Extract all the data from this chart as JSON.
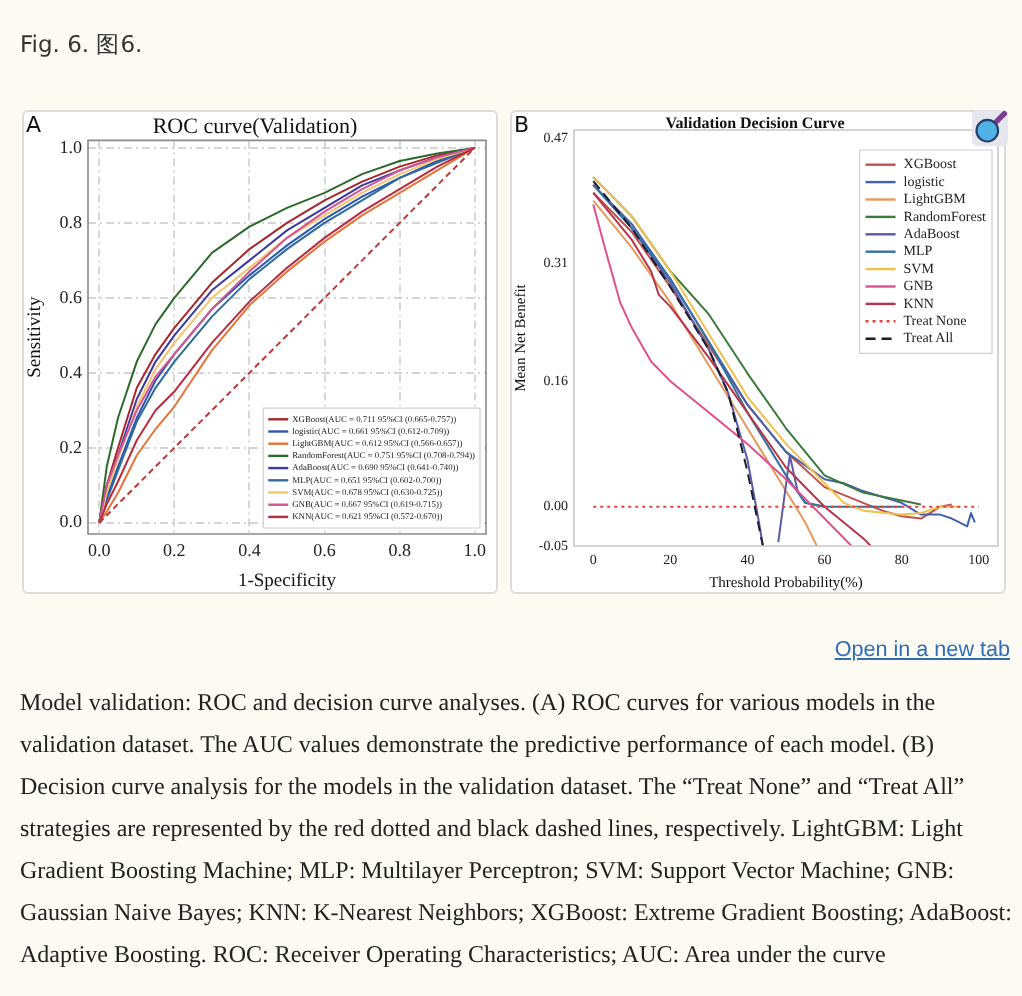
{
  "chart_data": [
    {
      "type": "line",
      "title": "ROC curve(Validation)",
      "xlabel": "1-Specificity",
      "ylabel": "Sensitivity",
      "annotations": [
        "Fig. 6. 图6.",
        "A"
      ],
      "x": [
        0,
        0.02,
        0.05,
        0.1,
        0.15,
        0.2,
        0.3,
        0.4,
        0.5,
        0.6,
        0.7,
        0.8,
        0.9,
        1.0
      ],
      "series": [
        {
          "name": "XGBoost(AUC = 0.711 95%CI (0.665-0.757))",
          "color": "#a8262b",
          "values": [
            0,
            0.1,
            0.2,
            0.36,
            0.45,
            0.52,
            0.64,
            0.73,
            0.8,
            0.86,
            0.91,
            0.95,
            0.98,
            1
          ]
        },
        {
          "name": "logistic(AUC = 0.661 95%CI (0.612-0.709))",
          "color": "#2e55b8",
          "values": [
            0,
            0.07,
            0.15,
            0.28,
            0.38,
            0.45,
            0.57,
            0.66,
            0.74,
            0.81,
            0.87,
            0.92,
            0.965,
            1
          ]
        },
        {
          "name": "LightGBM(AUC = 0.612 95%CI (0.566-0.657))",
          "color": "#e6733a",
          "values": [
            0,
            0.03,
            0.08,
            0.18,
            0.25,
            0.31,
            0.46,
            0.58,
            0.67,
            0.75,
            0.82,
            0.88,
            0.94,
            1
          ]
        },
        {
          "name": "RandomForest(AUC = 0.751 95%CI (0.708-0.794))",
          "color": "#2b6a2b",
          "values": [
            0,
            0.15,
            0.28,
            0.43,
            0.53,
            0.6,
            0.72,
            0.79,
            0.84,
            0.88,
            0.93,
            0.965,
            0.985,
            1
          ]
        },
        {
          "name": "AdaBoost(AUC = 0.690 95%CI (0.641-0.740))",
          "color": "#3a3aa0",
          "values": [
            0,
            0.1,
            0.18,
            0.33,
            0.43,
            0.5,
            0.62,
            0.7,
            0.78,
            0.84,
            0.9,
            0.94,
            0.975,
            1
          ]
        },
        {
          "name": "MLP(AUC = 0.651 95%CI (0.602-0.700))",
          "color": "#2d6c9a",
          "values": [
            0,
            0.06,
            0.14,
            0.27,
            0.36,
            0.43,
            0.55,
            0.65,
            0.73,
            0.8,
            0.86,
            0.92,
            0.96,
            1
          ]
        },
        {
          "name": "SVM(AUC = 0.678 95%CI (0.630-0.725))",
          "color": "#f4c56c",
          "values": [
            0,
            0.08,
            0.17,
            0.31,
            0.41,
            0.48,
            0.6,
            0.68,
            0.76,
            0.82,
            0.88,
            0.93,
            0.97,
            1
          ]
        },
        {
          "name": "GNB(AUC = 0.667 95%CI (0.619-0.715))",
          "color": "#d65591",
          "values": [
            0,
            0.1,
            0.18,
            0.3,
            0.39,
            0.45,
            0.57,
            0.67,
            0.76,
            0.83,
            0.89,
            0.94,
            0.975,
            1
          ]
        },
        {
          "name": "KNN(AUC = 0.621 95%CI (0.572-0.670))",
          "color": "#b52d3f",
          "values": [
            0,
            0.05,
            0.11,
            0.22,
            0.3,
            0.35,
            0.48,
            0.59,
            0.68,
            0.76,
            0.83,
            0.89,
            0.95,
            1
          ]
        },
        {
          "color": "#b83a3a",
          "x": [
            0,
            1
          ],
          "values": [
            0,
            1
          ],
          "line_style": "dashed"
        }
      ],
      "xlim": [
        -0.03,
        1.03
      ],
      "ylim": [
        -0.03,
        1.02
      ],
      "xticks": [
        {
          "value": 0,
          "label": "0.0"
        },
        {
          "value": 0.2,
          "label": "0.2"
        },
        {
          "value": 0.4,
          "label": "0.4"
        },
        {
          "value": 0.6,
          "label": "0.6"
        },
        {
          "value": 0.8,
          "label": "0.8"
        },
        {
          "value": 1,
          "label": "1.0"
        }
      ],
      "yticks": [
        {
          "value": 0,
          "label": "0.0"
        },
        {
          "value": 0.2,
          "label": "0.2"
        },
        {
          "value": 0.4,
          "label": "0.4"
        },
        {
          "value": 0.6,
          "label": "0.6"
        },
        {
          "value": 0.8,
          "label": "0.8"
        },
        {
          "value": 1,
          "label": "1.0"
        }
      ],
      "grid": true,
      "legend": "bottom right"
    },
    {
      "type": "line",
      "title": "Validation Decision Curve",
      "xlabel": "Threshold Probability(%)",
      "ylabel": "Mean Net Benefit",
      "annotations": [
        "B",
        "Open in a new tab",
        "Model validation: ROC and decision curve analyses. (A) ROC curves for various models in the validation dataset. The AUC values demonstrate the predictive performance of each model. (B) Decision curve analysis for the models in the validation dataset. The “Treat None” and “Treat All” strategies are represented by the red dotted and black dashed lines, respectively. LightGBM: Light Gradient Boosting Machine; MLP: Multilayer Perceptron; SVM: Support Vector Machine; GNB: Gaussian Naive Bayes; KNN: K-Nearest Neighbors; XGBoost: Extreme Gradient Boosting; AdaBoost: Adaptive Boosting. ROC: Receiver Operating Characteristics; AUC: Area under the curve"
      ],
      "series": [
        {
          "name": "XGBoost",
          "color": "#c0504d",
          "x": [
            0,
            10,
            20,
            30,
            40,
            50,
            60,
            70,
            75,
            80,
            85,
            90,
            93
          ],
          "values": [
            0.4,
            0.35,
            0.28,
            0.205,
            0.13,
            0.07,
            0.025,
            0.005,
            -0.005,
            -0.012,
            -0.015,
            0.0,
            0.003
          ]
        },
        {
          "name": "logistic",
          "color": "#4262b0",
          "x": [
            0,
            10,
            20,
            30,
            40,
            50,
            60,
            65,
            70,
            80,
            85,
            90,
            93,
            95,
            97,
            98,
            99
          ],
          "values": [
            0.41,
            0.36,
            0.29,
            0.21,
            0.13,
            0.07,
            0.035,
            0.03,
            0.02,
            0.005,
            -0.01,
            -0.01,
            -0.015,
            -0.02,
            -0.025,
            -0.008,
            -0.02
          ]
        },
        {
          "name": "LightGBM",
          "color": "#e59a5c",
          "x": [
            0,
            10,
            20,
            30,
            40,
            50,
            55,
            58
          ],
          "values": [
            0.39,
            0.33,
            0.26,
            0.18,
            0.1,
            0.02,
            -0.02,
            -0.05
          ]
        },
        {
          "name": "RandomForest",
          "color": "#3b7a3b",
          "x": [
            0,
            10,
            20,
            30,
            40,
            50,
            60,
            70,
            80,
            85
          ],
          "values": [
            0.42,
            0.37,
            0.3,
            0.245,
            0.17,
            0.1,
            0.04,
            0.018,
            0.008,
            0.003
          ]
        },
        {
          "name": "AdaBoost",
          "color": "#5a5aa8",
          "x": [
            0,
            10,
            20,
            30,
            35,
            40,
            43,
            44,
            46,
            48,
            51,
            53,
            55,
            60
          ],
          "values": [
            0.41,
            0.355,
            0.285,
            0.2,
            0.145,
            0.06,
            -0.02,
            -0.05,
            null,
            -0.045,
            0.065,
            0.02,
            0.005,
            0.0
          ]
        },
        {
          "name": "MLP",
          "color": "#3272a3",
          "x": [
            0,
            10,
            20,
            30,
            40,
            50,
            55,
            60,
            70,
            80
          ],
          "values": [
            0.41,
            0.355,
            0.29,
            0.21,
            0.12,
            0.04,
            0.005,
            0.0,
            0.0,
            0.0
          ]
        },
        {
          "name": "SVM",
          "color": "#f2c14e",
          "x": [
            0,
            10,
            20,
            30,
            40,
            50,
            60,
            65,
            70,
            80,
            85,
            90,
            95
          ],
          "values": [
            0.42,
            0.37,
            0.3,
            0.22,
            0.14,
            0.08,
            0.03,
            0.005,
            -0.005,
            -0.01,
            -0.008,
            0.0,
            0.0
          ]
        },
        {
          "name": "GNB",
          "color": "#e0508c",
          "x": [
            0,
            3,
            7,
            10,
            15,
            20,
            30,
            40,
            50,
            60,
            67
          ],
          "values": [
            0.385,
            0.33,
            0.26,
            0.228,
            0.185,
            0.16,
            0.12,
            0.08,
            0.035,
            -0.015,
            -0.05
          ]
        },
        {
          "name": "KNN",
          "color": "#b8344a",
          "x": [
            0,
            10,
            15,
            17,
            20,
            30,
            40,
            50,
            60,
            65,
            70,
            72
          ],
          "values": [
            0.4,
            0.34,
            0.3,
            0.27,
            0.255,
            0.19,
            0.12,
            0.05,
            0.0,
            -0.02,
            -0.04,
            -0.05
          ]
        },
        {
          "name": "Treat None",
          "color": "#e8413c",
          "x": [
            0,
            100
          ],
          "values": [
            0,
            0
          ],
          "line_style": "dotted"
        },
        {
          "name": "Treat All",
          "color": "#1c1c2c",
          "x": [
            0,
            10,
            20,
            30,
            35,
            40,
            44
          ],
          "values": [
            0.415,
            0.355,
            0.28,
            0.2,
            0.145,
            0.045,
            -0.05
          ],
          "line_style": "dashed"
        }
      ],
      "xlim": [
        -5,
        105
      ],
      "ylim": [
        -0.05,
        0.48
      ],
      "xticks": [
        0,
        20,
        40,
        60,
        80,
        100
      ],
      "yticks": [
        0.47,
        0.31,
        0.16,
        {
          "value": 0,
          "label": "0.00"
        },
        -0.05
      ],
      "legend": "top right"
    }
  ]
}
